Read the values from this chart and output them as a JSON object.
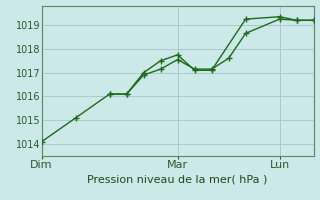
{
  "background_color": "#cce8e8",
  "grid_color": "#aacccc",
  "line_color": "#1a6b1a",
  "marker_color": "#1a6b1a",
  "xlabel": "Pression niveau de la mer( hPa )",
  "ylim": [
    1013.5,
    1019.8
  ],
  "yticks": [
    1014,
    1015,
    1016,
    1017,
    1018,
    1019
  ],
  "day_labels": [
    "Dim",
    "Mar",
    "Lun"
  ],
  "day_positions": [
    0.0,
    0.5,
    0.875
  ],
  "line1_x": [
    0.0,
    0.125,
    0.25,
    0.3125,
    0.375,
    0.4375,
    0.5,
    0.5625,
    0.625,
    0.75,
    0.875,
    0.9375,
    1.0
  ],
  "line1_y": [
    1014.1,
    1015.1,
    1016.1,
    1016.1,
    1017.0,
    1017.5,
    1017.75,
    1017.1,
    1017.1,
    1019.25,
    1019.35,
    1019.2,
    1019.2
  ],
  "line2_x": [
    0.25,
    0.3125,
    0.375,
    0.4375,
    0.5,
    0.5625,
    0.625,
    0.6875,
    0.75,
    0.875,
    0.9375,
    1.0
  ],
  "line2_y": [
    1016.1,
    1016.1,
    1016.9,
    1017.15,
    1017.55,
    1017.15,
    1017.15,
    1017.6,
    1018.65,
    1019.25,
    1019.2,
    1019.2
  ],
  "vline_positions": [
    0.5,
    0.875
  ],
  "xlim": [
    0.0,
    1.0
  ],
  "xlabel_fontsize": 8,
  "ytick_fontsize": 7,
  "xtick_fontsize": 8
}
